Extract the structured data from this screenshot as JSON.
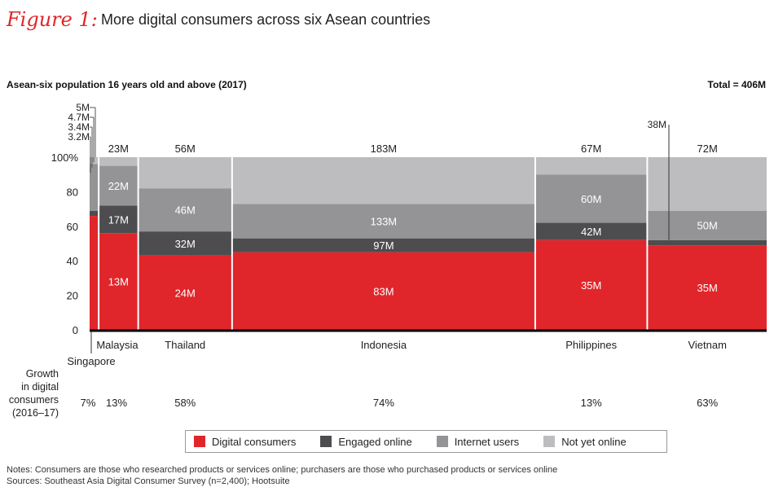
{
  "figure_label": "Figure 1:",
  "figure_title": "More digital consumers across six Asean countries",
  "subtitle": "Asean-six population 16 years old and above (2017)",
  "total": "Total = 406M",
  "growth_label": [
    "Growth",
    "in digital",
    "consumers",
    "(2016–17)"
  ],
  "notes": [
    "Notes: Consumers are those who researched products or services online; purchasers are those who purchased products or services online",
    "Sources: Southeast Asia Digital Consumer Survey (n=2,400); Hootsuite"
  ],
  "colors": {
    "digital": "#e0262b",
    "engaged": "#4d4d4f",
    "internet": "#949496",
    "not_online": "#bdbdbf"
  },
  "chart_data": {
    "type": "bar",
    "variant": "marimekko",
    "y_ticks": [
      "0",
      "20",
      "40",
      "60",
      "80",
      "100%"
    ],
    "ylim": [
      0,
      100
    ],
    "legend_position": "bottom",
    "series": [
      {
        "name": "Digital consumers",
        "key": "digital"
      },
      {
        "name": "Engaged online",
        "key": "engaged"
      },
      {
        "name": "Internet users",
        "key": "internet"
      },
      {
        "name": "Not yet online",
        "key": "not_online"
      }
    ],
    "countries": [
      {
        "name": "Singapore",
        "population": 5,
        "population_label": "",
        "growth": "7%",
        "shares": [
          66,
          3,
          27,
          4
        ],
        "labels": [
          "",
          "",
          "",
          ""
        ],
        "callouts": [
          "5M",
          "4.7M",
          "3.4M",
          "3.2M"
        ]
      },
      {
        "name": "Malaysia",
        "population": 23,
        "population_label": "23M",
        "growth": "13%",
        "shares": [
          56,
          16,
          23,
          5
        ],
        "labels": [
          "13M",
          "17M",
          "22M",
          ""
        ]
      },
      {
        "name": "Thailand",
        "population": 56,
        "population_label": "56M",
        "growth": "58%",
        "shares": [
          43,
          14,
          25,
          18
        ],
        "labels": [
          "24M",
          "32M",
          "46M",
          ""
        ]
      },
      {
        "name": "Indonesia",
        "population": 183,
        "population_label": "183M",
        "growth": "74%",
        "shares": [
          45,
          8,
          20,
          27
        ],
        "labels": [
          "83M",
          "97M",
          "133M",
          ""
        ]
      },
      {
        "name": "Philippines",
        "population": 67,
        "population_label": "67M",
        "growth": "13%",
        "shares": [
          52,
          10,
          28,
          10
        ],
        "labels": [
          "35M",
          "42M",
          "60M",
          ""
        ]
      },
      {
        "name": "Vietnam",
        "population": 72,
        "population_label": "72M",
        "growth": "63%",
        "shares": [
          49,
          3,
          17,
          31
        ],
        "labels": [
          "35M",
          "",
          "50M",
          ""
        ],
        "callouts": [
          "38M"
        ]
      }
    ]
  }
}
